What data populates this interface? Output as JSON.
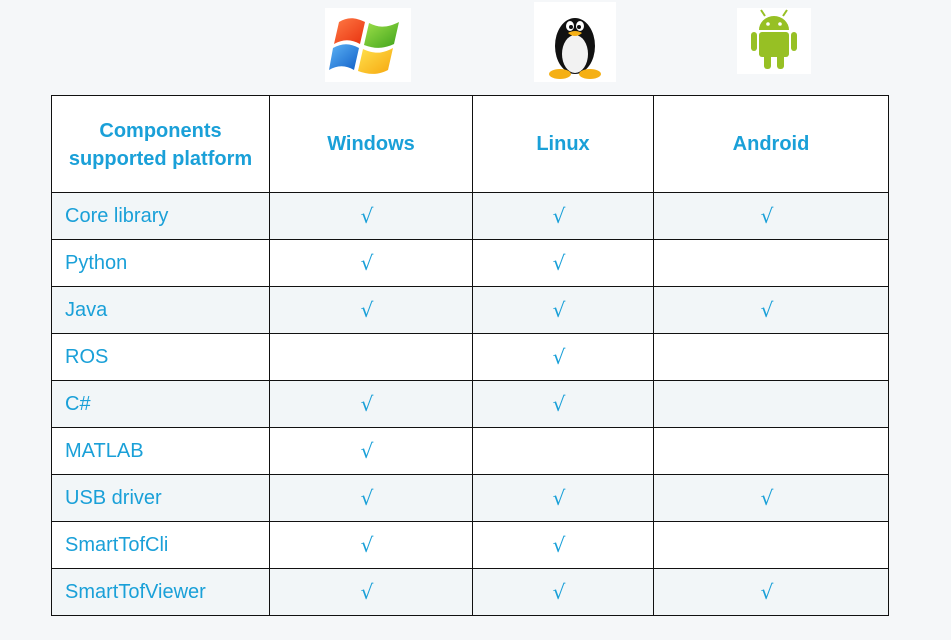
{
  "logos": [
    "windows-logo-icon",
    "linux-tux-icon",
    "android-robot-icon"
  ],
  "table": {
    "corner_line1": "Components",
    "corner_line2": "supported platform",
    "platforms": [
      "Windows",
      "Linux",
      "Android"
    ],
    "check_symbol": "√",
    "rows": [
      {
        "name": "Core library",
        "windows": "√",
        "linux": "√",
        "android": "√"
      },
      {
        "name": "Python",
        "windows": "√",
        "linux": "√",
        "android": ""
      },
      {
        "name": "Java",
        "windows": "√",
        "linux": "√",
        "android": "√"
      },
      {
        "name": "ROS",
        "windows": "",
        "linux": "√",
        "android": ""
      },
      {
        "name": "C#",
        "windows": "√",
        "linux": "√",
        "android": ""
      },
      {
        "name": "MATLAB",
        "windows": "√",
        "linux": "",
        "android": ""
      },
      {
        "name": "USB driver",
        "windows": "√",
        "linux": "√",
        "android": "√"
      },
      {
        "name": "SmartTofCli",
        "windows": "√",
        "linux": "√",
        "android": ""
      },
      {
        "name": "SmartTofViewer",
        "windows": "√",
        "linux": "√",
        "android": "√"
      }
    ]
  },
  "colors": {
    "text": "#1aa0d8",
    "border": "#111111",
    "row_shade": "#f2f6f8",
    "background": "#f5f7f9"
  }
}
